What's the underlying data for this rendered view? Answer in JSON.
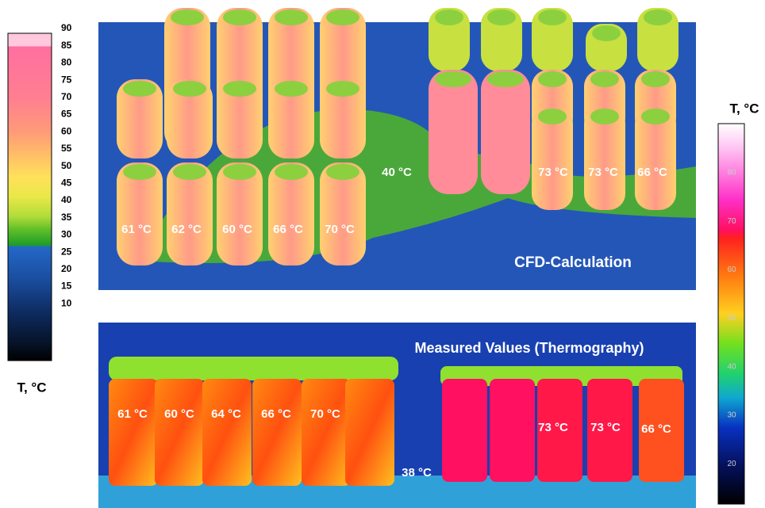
{
  "left_scale": {
    "title": "T, °C",
    "ticks": [
      90,
      85,
      80,
      75,
      70,
      65,
      60,
      55,
      50,
      45,
      40,
      35,
      30,
      25,
      20,
      15,
      10
    ]
  },
  "right_scale": {
    "title": "T, °C",
    "ticks": [
      80,
      70,
      60,
      50,
      40,
      30,
      20
    ]
  },
  "top_panel": {
    "title": "CFD-Calculation",
    "labels": [
      "61 °C",
      "62 °C",
      "60 °C",
      "66 °C",
      "70 °C",
      "40 °C",
      "73 °C",
      "73 °C",
      "66 °C"
    ]
  },
  "bottom_panel": {
    "title": "Measured Values (Thermography)",
    "labels": [
      "61 °C",
      "60 °C",
      "64 °C",
      "66 °C",
      "70 °C",
      "38 °C",
      "73 °C",
      "73 °C",
      "66 °C"
    ]
  }
}
